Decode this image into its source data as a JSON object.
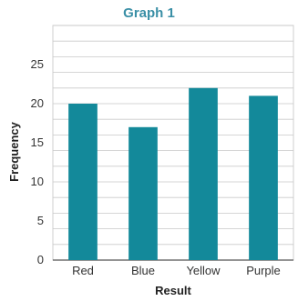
{
  "chart_data": {
    "type": "bar",
    "title": "Graph 1",
    "xlabel": "Result",
    "ylabel": "Frequency",
    "categories": [
      "Red",
      "Blue",
      "Yellow",
      "Purple"
    ],
    "values": [
      20,
      17,
      22,
      21
    ],
    "ylim": [
      0,
      30
    ],
    "yticks": [
      "0",
      "5",
      "10",
      "15",
      "20",
      "25"
    ],
    "grid": true,
    "bar_color": "#13899a"
  }
}
